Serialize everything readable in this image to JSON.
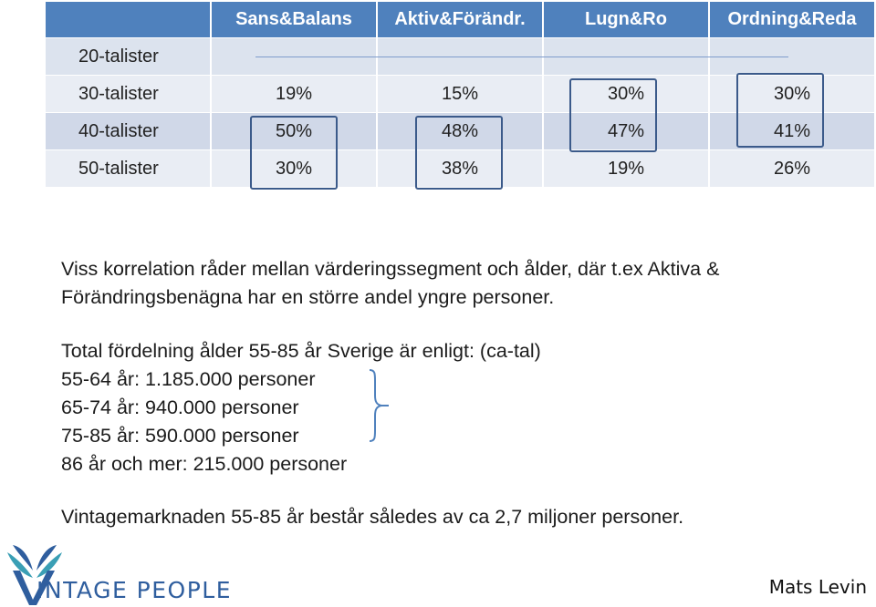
{
  "table": {
    "columns": [
      "Sans&Balans",
      "Aktiv&Förändr.",
      "Lugn&Ro",
      "Ordning&Reda"
    ],
    "rows": [
      {
        "label": "20-talister",
        "values": [
          "",
          "",
          "",
          ""
        ]
      },
      {
        "label": "30-talister",
        "values": [
          "19%",
          "15%",
          "30%",
          "30%"
        ]
      },
      {
        "label": "40-talister",
        "values": [
          "50%",
          "48%",
          "47%",
          "41%"
        ]
      },
      {
        "label": "50-talister",
        "values": [
          "30%",
          "38%",
          "19%",
          "26%"
        ]
      }
    ]
  },
  "body": {
    "para1": "Viss korrelation råder mellan värderingssegment och ålder, där t.ex Aktiva & Förändringsbenägna har en större andel yngre personer.",
    "dist_title": "Total fördelning ålder 55-85 år Sverige är enligt: (ca-tal)",
    "dist_lines": [
      "55-64 år: 1.185.000 personer",
      "65-74 år: 940.000 personer",
      "75-85 år: 590.000 personer",
      "86 år och mer: 215.000 personer"
    ],
    "conclusion": "Vintagemarknaden 55-85 år består således av ca 2,7 miljoner personer."
  },
  "footer": {
    "logo_initial": "V",
    "logo_text": "INTAGE PEOPLE",
    "author": "Mats Levin"
  },
  "colors": {
    "header_blue": "#4f81bd",
    "row_dark": "#d0d8e8",
    "row_light": "#e9edf4",
    "highlight_box": "#3b5a8a",
    "logo_blue": "#2f5e9e",
    "logo_teal": "#3a9fb5"
  },
  "icons": {
    "logo": "butterfly-logo-icon"
  }
}
